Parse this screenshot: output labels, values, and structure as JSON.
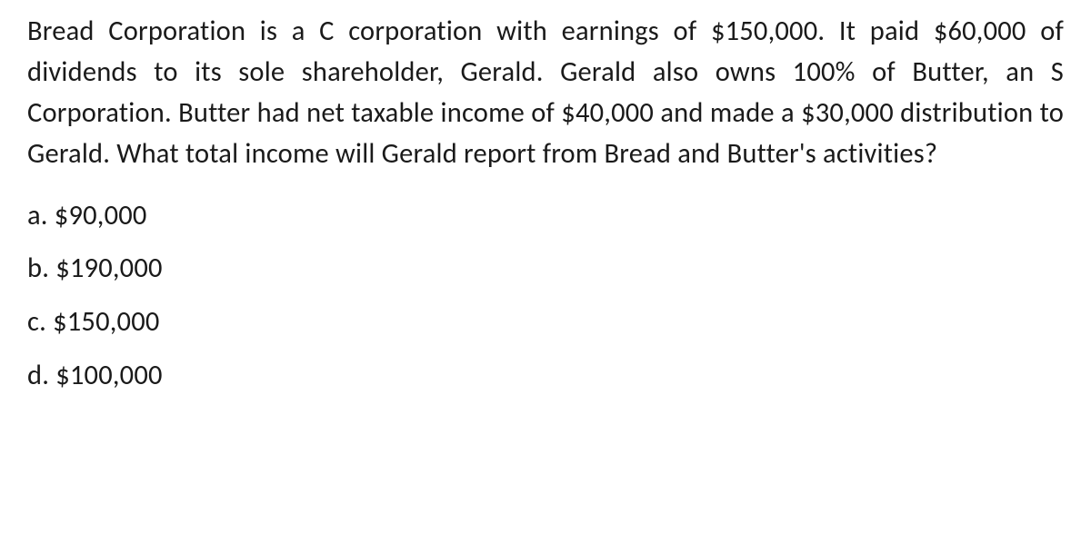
{
  "question": {
    "text": "Bread Corporation is a C corporation with earnings of $150,000. It paid $60,000 of dividends to its sole shareholder, Gerald. Gerald also owns 100% of Butter, an S Corporation. Butter had net taxable income of $40,000 and made a $30,000 distribution to Gerald. What total income will Gerald report from Bread and Butter's activities?",
    "font_size": 30.5,
    "text_align": "justify",
    "color": "#1a1a1a"
  },
  "options": {
    "a": "a. $90,000",
    "b": "b. $190,000",
    "c": "c. $150,000",
    "d": "d. $100,000"
  },
  "styling": {
    "background_color": "#ffffff",
    "font_family": "Segoe UI, Calibri, Arial, sans-serif",
    "line_height": 1.48,
    "option_spacing": 16
  }
}
